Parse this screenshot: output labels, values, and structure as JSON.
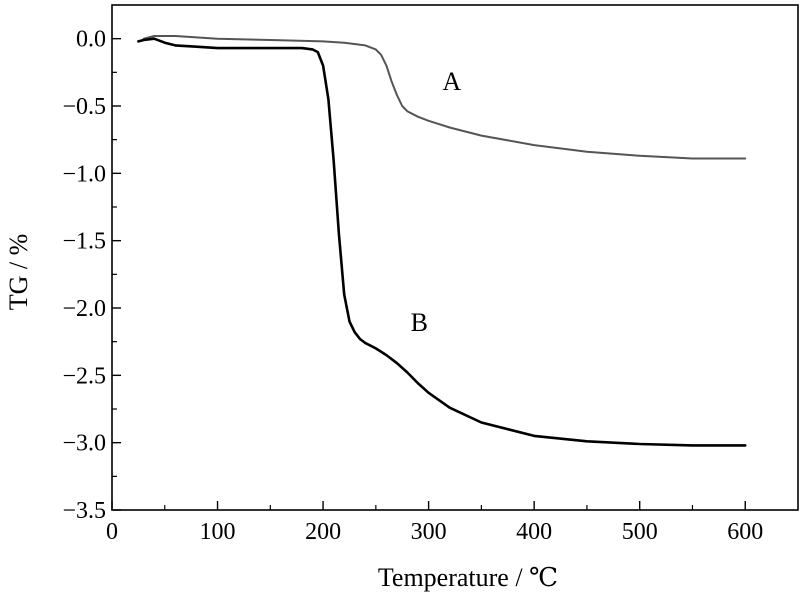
{
  "chart_data": {
    "type": "line",
    "title": "",
    "xlabel": "Temperature / ℃",
    "ylabel": "TG / %",
    "xlim": [
      0,
      650
    ],
    "ylim": [
      -3.5,
      0.25
    ],
    "x_ticks": [
      0,
      100,
      200,
      300,
      400,
      500,
      600
    ],
    "x_tick_labels": [
      "0",
      "100",
      "200",
      "300",
      "400",
      "500",
      "600"
    ],
    "x_minor_ticks": [
      50,
      150,
      250,
      350,
      450,
      550
    ],
    "y_ticks": [
      0.0,
      -0.5,
      -1.0,
      -1.5,
      -2.0,
      -2.5,
      -3.0,
      -3.5
    ],
    "y_tick_labels": [
      "0.0",
      "−0.5",
      "−1.0",
      "−1.5",
      "−2.0",
      "−2.5",
      "−3.0",
      "−3.5"
    ],
    "y_minor_ticks": [
      -0.25,
      -0.75,
      -1.25,
      -1.75,
      -2.25,
      -2.75,
      -3.25
    ],
    "grid": false,
    "legend": "none",
    "annotations": [
      {
        "text": "A",
        "x": 313,
        "y": -0.38
      },
      {
        "text": "B",
        "x": 283,
        "y": -2.17
      }
    ],
    "series": [
      {
        "name": "A",
        "color": "#555555",
        "x": [
          30,
          40,
          60,
          100,
          150,
          200,
          220,
          240,
          250,
          255,
          260,
          265,
          270,
          275,
          280,
          290,
          300,
          320,
          350,
          400,
          450,
          500,
          550,
          600
        ],
        "y": [
          0.0,
          0.02,
          0.02,
          0.0,
          -0.01,
          -0.02,
          -0.03,
          -0.05,
          -0.08,
          -0.12,
          -0.2,
          -0.32,
          -0.42,
          -0.5,
          -0.54,
          -0.58,
          -0.61,
          -0.66,
          -0.72,
          -0.79,
          -0.84,
          -0.87,
          -0.89,
          -0.89
        ]
      },
      {
        "name": "B",
        "color": "#000000",
        "x": [
          25,
          30,
          40,
          50,
          60,
          80,
          100,
          150,
          180,
          190,
          195,
          200,
          205,
          210,
          215,
          220,
          225,
          230,
          235,
          240,
          245,
          250,
          260,
          270,
          280,
          290,
          300,
          320,
          350,
          400,
          450,
          500,
          550,
          600
        ],
        "y": [
          -0.02,
          -0.01,
          0.0,
          -0.03,
          -0.05,
          -0.06,
          -0.07,
          -0.07,
          -0.07,
          -0.08,
          -0.1,
          -0.2,
          -0.45,
          -0.9,
          -1.45,
          -1.9,
          -2.1,
          -2.18,
          -2.23,
          -2.26,
          -2.28,
          -2.3,
          -2.35,
          -2.41,
          -2.48,
          -2.56,
          -2.63,
          -2.74,
          -2.85,
          -2.95,
          -2.99,
          -3.01,
          -3.02,
          -3.02
        ]
      }
    ]
  }
}
